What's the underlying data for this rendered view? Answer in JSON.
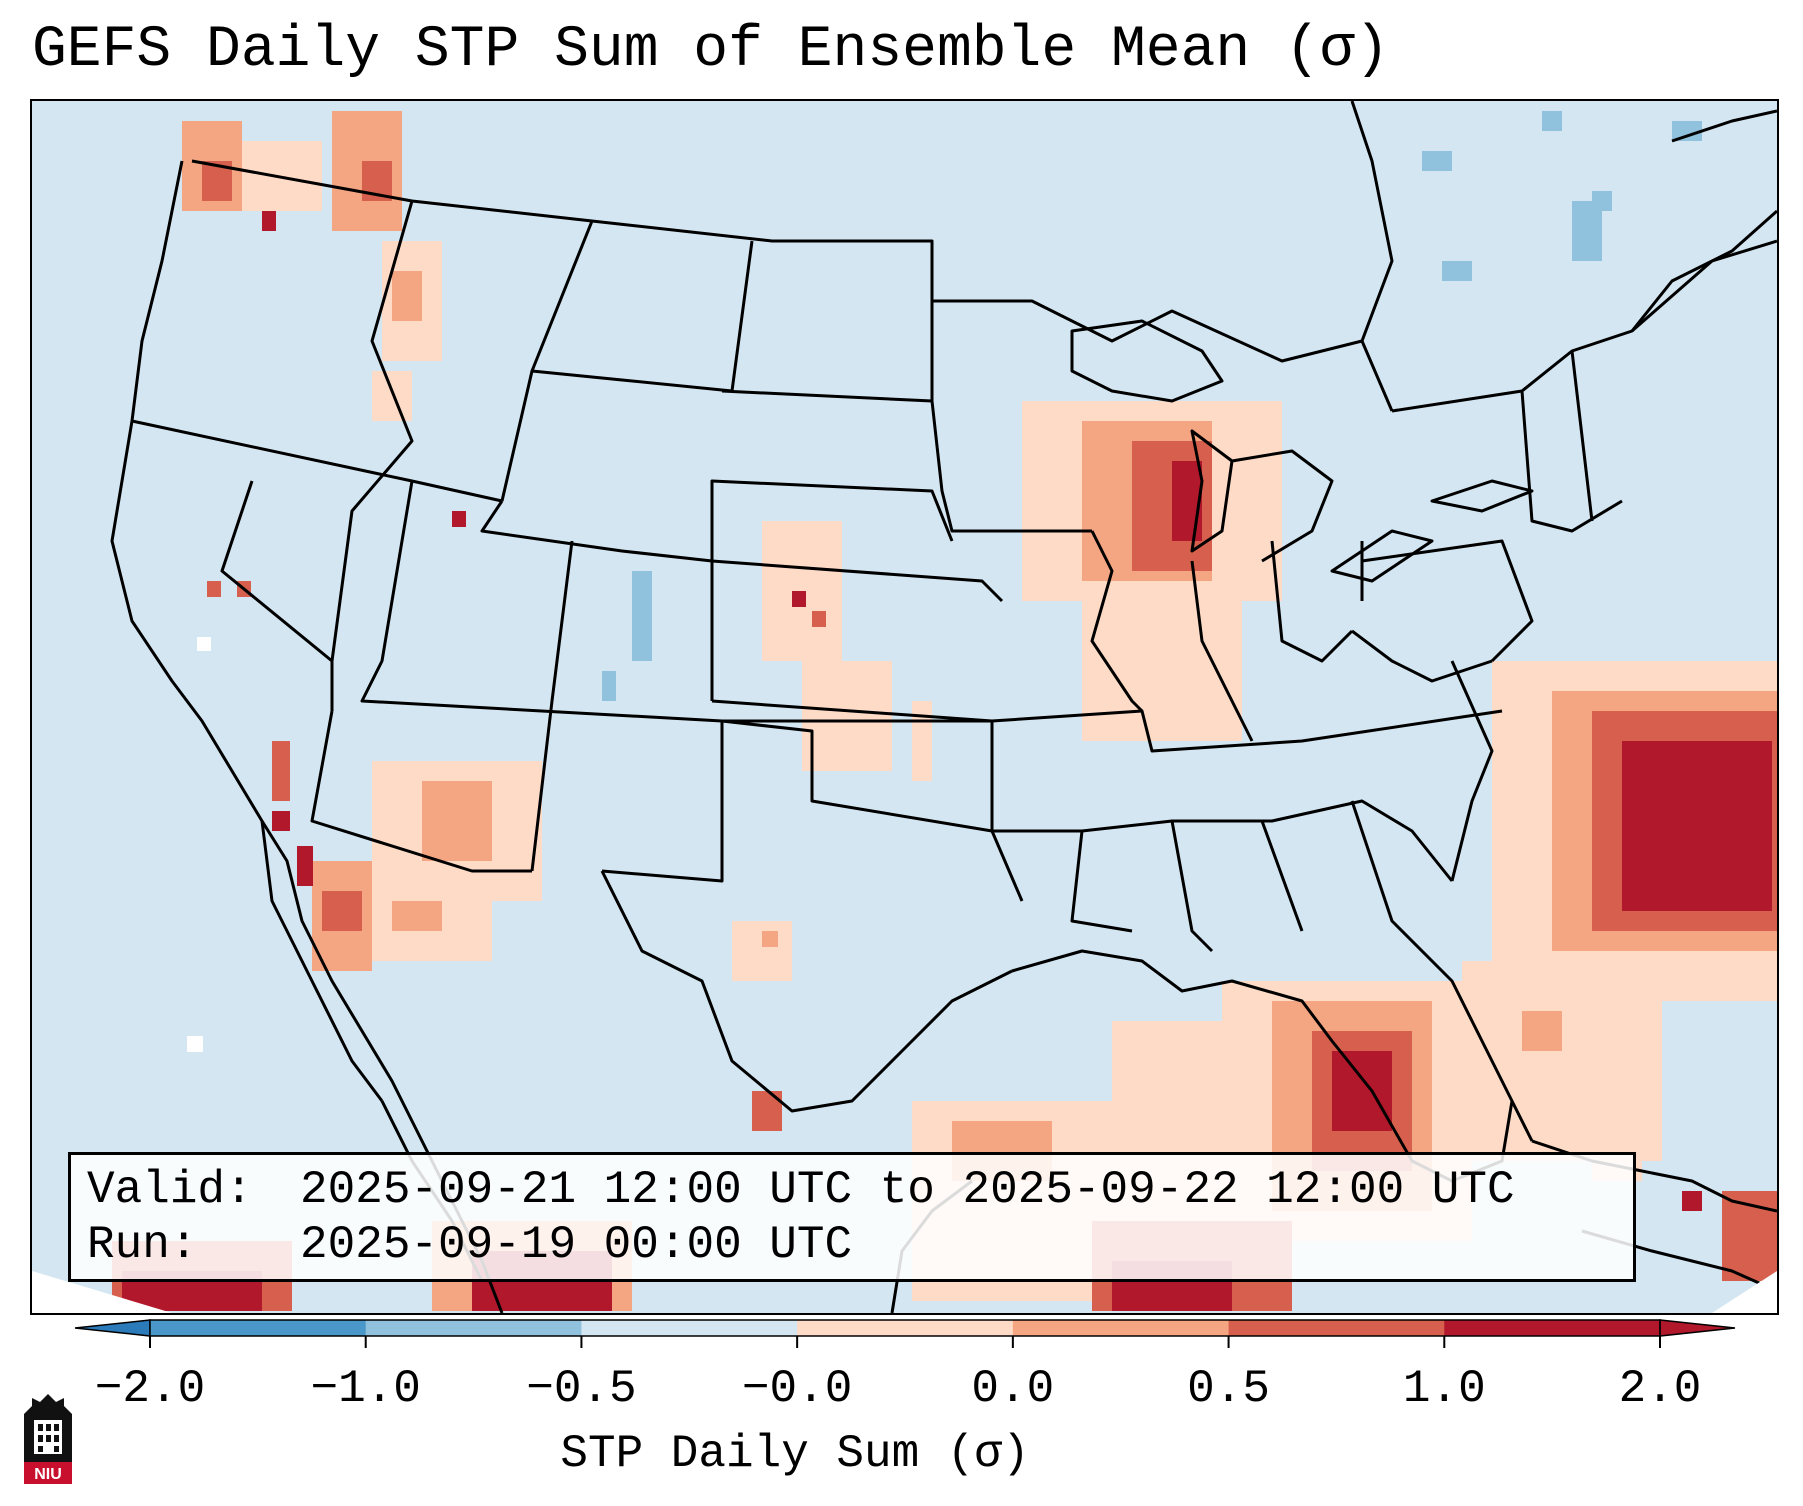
{
  "title": "GEFS Daily STP Sum of Ensemble Mean (σ)",
  "info": {
    "valid_label": "Valid:",
    "valid_value": "2025-09-21 12:00 UTC to 2025-09-22 12:00 UTC",
    "run_label": "Run:",
    "run_value": "2025-09-19 00:00 UTC"
  },
  "colorbar": {
    "label": "STP Daily Sum (σ)",
    "ticks": [
      "−2.0",
      "−1.0",
      "−0.5",
      "−0.0",
      "0.0",
      "0.5",
      "1.0",
      "2.0"
    ],
    "colors": [
      "#2b7bba",
      "#4a98c9",
      "#90c2de",
      "#d4e6f1",
      "#fddbc7",
      "#f4a582",
      "#d6604d",
      "#b2182b"
    ],
    "extend": "both"
  },
  "map": {
    "projection": "Lambert conformal, CONUS",
    "background_color": "#d4e6f1",
    "features": [
      "state borders",
      "coastlines",
      "lakes"
    ]
  },
  "logo": {
    "text": "NIU",
    "icon": "niu-tower-icon"
  }
}
